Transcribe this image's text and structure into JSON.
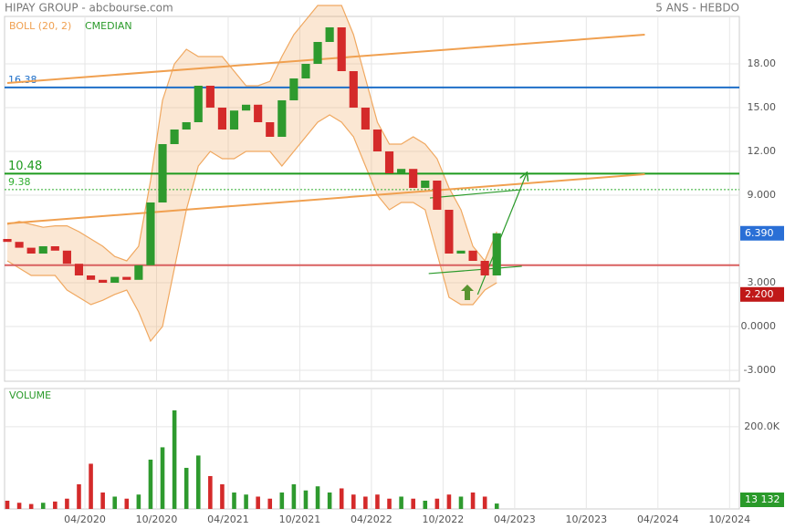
{
  "chart_data": {
    "type": "candlestick",
    "title": "HIPAY GROUP - abcbourse.com",
    "subtitle": "5 ANS - HEBDO",
    "indicators": [
      "BOLL (20, 2)",
      "CMEDIAN"
    ],
    "x": [
      -3.5,
      -2.5,
      -1.5,
      -0.5,
      0.5,
      1.5,
      2.5,
      3.5,
      4.5,
      5.5,
      6.5,
      7.5,
      8.5,
      9.5,
      10.5,
      11.5,
      12.5,
      13.5,
      14.5,
      15.5,
      16.5,
      17.5,
      18.5,
      19.5,
      20.5,
      21.5,
      22.5,
      23.5,
      24.5,
      25.5,
      26.5,
      27.5,
      28.5,
      29.5,
      30.5,
      31.5,
      32.5,
      33.5,
      34.5,
      35.5,
      36.5,
      37.5
    ],
    "open": [
      6.0,
      5.8,
      5.4,
      5.0,
      5.5,
      5.2,
      4.3,
      3.5,
      3.2,
      3.0,
      3.4,
      3.2,
      4.2,
      8.5,
      12.5,
      13.5,
      14.0,
      16.5,
      15.0,
      13.5,
      14.8,
      15.2,
      14.0,
      13.0,
      15.5,
      17.0,
      18.0,
      19.5,
      20.5,
      17.5,
      15.0,
      13.5,
      12.0,
      10.5,
      10.8,
      9.5,
      10.0,
      8.0,
      5.0,
      5.2,
      4.5,
      3.5
    ],
    "close": [
      5.8,
      5.4,
      5.0,
      5.5,
      5.2,
      4.3,
      3.5,
      3.2,
      3.0,
      3.4,
      3.2,
      4.2,
      8.5,
      12.5,
      13.5,
      14.0,
      16.5,
      15.0,
      13.5,
      14.8,
      15.2,
      14.0,
      13.0,
      15.5,
      17.0,
      18.0,
      19.5,
      20.5,
      17.5,
      15.0,
      13.5,
      12.0,
      10.5,
      10.8,
      9.5,
      10.0,
      8.0,
      5.0,
      5.2,
      4.5,
      3.5,
      6.39
    ],
    "band_upper": [
      7.0,
      7.2,
      7.0,
      6.8,
      6.9,
      6.9,
      6.5,
      6.0,
      5.5,
      4.8,
      4.5,
      5.5,
      10.0,
      15.5,
      18.0,
      19.0,
      18.5,
      18.5,
      18.5,
      17.5,
      16.5,
      16.5,
      16.8,
      18.5,
      20.0,
      21.0,
      22.0,
      22.0,
      22.0,
      20.0,
      17.0,
      14.0,
      12.5,
      12.5,
      13.0,
      12.5,
      11.5,
      9.5,
      8.0,
      5.5,
      4.5,
      6.5
    ],
    "band_lower": [
      4.5,
      4.0,
      3.5,
      3.5,
      3.5,
      2.5,
      2.0,
      1.5,
      1.8,
      2.2,
      2.5,
      1.0,
      -1.0,
      0.0,
      4.0,
      8.0,
      11.0,
      12.0,
      11.5,
      11.5,
      12.0,
      12.0,
      12.0,
      11.0,
      12.0,
      13.0,
      14.0,
      14.5,
      14.0,
      13.0,
      11.0,
      9.0,
      8.0,
      8.5,
      8.5,
      8.0,
      5.0,
      2.0,
      1.5,
      1.5,
      2.5,
      3.0
    ],
    "up_color": "#2e9a2e",
    "down_color": "#d42a2a",
    "band_color": "#f0a860",
    "xlim": [
      -3.73,
      57.82
    ],
    "xticks": [
      {
        "value": 3,
        "label": "04/2020"
      },
      {
        "value": 9,
        "label": "10/2020"
      },
      {
        "value": 15,
        "label": "04/2021"
      },
      {
        "value": 21,
        "label": "10/2021"
      },
      {
        "value": 27,
        "label": "04/2022"
      },
      {
        "value": 33,
        "label": "10/2022"
      },
      {
        "value": 39,
        "label": "04/2023"
      },
      {
        "value": 45,
        "label": "10/2023"
      },
      {
        "value": 51,
        "label": "04/2024"
      },
      {
        "value": 57,
        "label": "10/2024"
      }
    ],
    "ylim": [
      -3.75,
      21.25
    ],
    "yticks": [
      {
        "value": 18,
        "label": "18.00"
      },
      {
        "value": 15,
        "label": "15.00"
      },
      {
        "value": 12,
        "label": "12.00"
      },
      {
        "value": 9,
        "label": "9.000"
      },
      {
        "value": 3,
        "label": "3.000"
      },
      {
        "value": 0,
        "label": "0.0000"
      },
      {
        "value": -3,
        "label": "-3.000"
      }
    ],
    "grid": true,
    "levels": [
      {
        "value": 16.38,
        "label": "16.38",
        "color": "#1f6fc8"
      },
      {
        "value": 10.48,
        "label": "10.48",
        "color": "#1e9a1e"
      },
      {
        "value": 9.38,
        "label": "9.38",
        "color": "#2fae2f",
        "dashed": true
      },
      {
        "value": 4.2,
        "color": "#d96060"
      }
    ],
    "trendlines": [
      {
        "x": [
          -3.5,
          49.9
        ],
        "y": [
          7.06,
          10.44
        ],
        "color": "#f0a050"
      },
      {
        "x": [
          -3.5,
          49.9
        ],
        "y": [
          16.69,
          20.0
        ],
        "color": "#f0a050"
      },
      {
        "x": [
          35.9,
          40.0
        ],
        "y": [
          2.19,
          10.5
        ],
        "color": "#2a9a2a",
        "arrow": true
      },
      {
        "x": [
          31.8,
          39.6
        ],
        "y": [
          3.63,
          4.13
        ],
        "color": "#2a9a2a"
      },
      {
        "x": [
          31.9,
          39.6
        ],
        "y": [
          8.81,
          9.38
        ],
        "color": "#2a9a2a"
      }
    ],
    "price_tags": [
      {
        "value": 6.39,
        "label": "6.390",
        "color": "#2a6fd6"
      },
      {
        "value": 2.2,
        "label": "2.200",
        "color": "#c01818"
      }
    ],
    "volume": {
      "title": "VOLUME",
      "values": [
        20000,
        15000,
        12000,
        15000,
        18000,
        25000,
        60000,
        110000,
        40000,
        30000,
        25000,
        35000,
        120000,
        150000,
        240000,
        100000,
        130000,
        80000,
        60000,
        40000,
        35000,
        30000,
        25000,
        40000,
        60000,
        45000,
        55000,
        40000,
        50000,
        35000,
        30000,
        35000,
        25000,
        30000,
        25000,
        20000,
        25000,
        35000,
        30000,
        40000,
        30000,
        13132
      ],
      "ylim": [
        0,
        293000
      ],
      "yticks": [
        {
          "value": 200000,
          "label": "200.0K"
        }
      ],
      "last_tag": {
        "value": 13132,
        "label": "13 132",
        "color": "#2a9a2a"
      }
    }
  }
}
